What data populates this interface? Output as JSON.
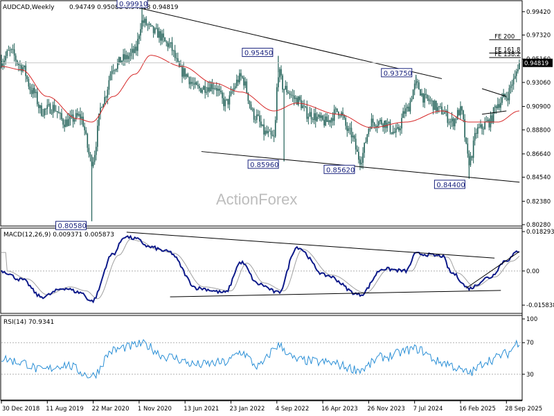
{
  "header": {
    "symbol": "AUDCAD,Weekly",
    "ohlc": "0.94749 0.95088 0.94518 0.94819"
  },
  "watermark": "ActionForex",
  "colors": {
    "candle": "#1f5f56",
    "ema": "#d62828",
    "macd": "#0d1a8a",
    "signal": "#a0a0a0",
    "rsi": "#2a8fd6",
    "annot_box": "#1a237e",
    "last_price_bg": "#000000"
  },
  "chart_data": [
    {
      "type": "candlestick",
      "name": "price",
      "ylim": [
        0.8028,
        1.0022
      ],
      "yticks": [
        "0.99420",
        "0.97320",
        "0.95160",
        "0.93060",
        "0.90900",
        "0.88800",
        "0.86640",
        "0.84540",
        "0.82380",
        "0.80280"
      ],
      "ytick_values": [
        0.9942,
        0.9732,
        0.9516,
        0.9306,
        0.909,
        0.888,
        0.8664,
        0.8454,
        0.8238,
        0.8028
      ],
      "last_price": "0.94819",
      "xticks": [
        "30 Dec 2018",
        "11 Aug 2019",
        "22 Mar 2020",
        "1 Nov 2020",
        "13 Jun 2021",
        "23 Jan 2022",
        "4 Sep 2022",
        "16 Apr 2023",
        "26 Nov 2023",
        "7 Jul 2024",
        "16 Feb 2025",
        "28 Sep 2025"
      ],
      "annotations": [
        {
          "text": "0.99910",
          "value": 0.9991,
          "date": "2020-11-15"
        },
        {
          "text": "0.95450",
          "value": 0.9545,
          "date": "2022-09-11"
        },
        {
          "text": "0.93750",
          "value": 0.9375,
          "date": "2024-07-14"
        },
        {
          "text": "0.85960",
          "value": 0.8596,
          "date": "2022-10-09"
        },
        {
          "text": "0.85620",
          "value": 0.8562,
          "date": "2023-10-15"
        },
        {
          "text": "0.84400",
          "value": 0.844,
          "date": "2025-03-30"
        },
        {
          "text": "0.80580",
          "value": 0.8058,
          "date": "2020-03-15"
        }
      ],
      "fib_levels": [
        {
          "text": "FE 200",
          "value": 0.969
        },
        {
          "text": "FE 161.8",
          "value": 0.957
        },
        {
          "text": "FE 138.2",
          "value": 0.953
        }
      ],
      "anchors": [
        {
          "date": "2018-12-30",
          "value": 0.95
        },
        {
          "date": "2019-02-10",
          "value": 0.958
        },
        {
          "date": "2019-04-07",
          "value": 0.945
        },
        {
          "date": "2019-06-02",
          "value": 0.922
        },
        {
          "date": "2019-07-14",
          "value": 0.905
        },
        {
          "date": "2019-09-08",
          "value": 0.908
        },
        {
          "date": "2019-11-03",
          "value": 0.895
        },
        {
          "date": "2020-01-19",
          "value": 0.9
        },
        {
          "date": "2020-03-15",
          "value": 0.86
        },
        {
          "date": "2020-05-10",
          "value": 0.915
        },
        {
          "date": "2020-06-28",
          "value": 0.945
        },
        {
          "date": "2020-08-23",
          "value": 0.952
        },
        {
          "date": "2020-10-11",
          "value": 0.958
        },
        {
          "date": "2020-11-15",
          "value": 0.985
        },
        {
          "date": "2021-01-24",
          "value": 0.975
        },
        {
          "date": "2021-03-21",
          "value": 0.965
        },
        {
          "date": "2021-05-30",
          "value": 0.94
        },
        {
          "date": "2021-08-15",
          "value": 0.925
        },
        {
          "date": "2021-10-31",
          "value": 0.928
        },
        {
          "date": "2021-12-26",
          "value": 0.912
        },
        {
          "date": "2022-03-13",
          "value": 0.935
        },
        {
          "date": "2022-05-22",
          "value": 0.9
        },
        {
          "date": "2022-07-10",
          "value": 0.885
        },
        {
          "date": "2022-08-21",
          "value": 0.88
        },
        {
          "date": "2022-09-11",
          "value": 0.94
        },
        {
          "date": "2022-10-09",
          "value": 0.925
        },
        {
          "date": "2022-12-11",
          "value": 0.915
        },
        {
          "date": "2023-02-05",
          "value": 0.902
        },
        {
          "date": "2023-04-30",
          "value": 0.895
        },
        {
          "date": "2023-07-02",
          "value": 0.905
        },
        {
          "date": "2023-08-27",
          "value": 0.885
        },
        {
          "date": "2023-10-15",
          "value": 0.862
        },
        {
          "date": "2023-12-10",
          "value": 0.895
        },
        {
          "date": "2024-02-04",
          "value": 0.895
        },
        {
          "date": "2024-04-07",
          "value": 0.885
        },
        {
          "date": "2024-05-26",
          "value": 0.905
        },
        {
          "date": "2024-07-14",
          "value": 0.928
        },
        {
          "date": "2024-09-01",
          "value": 0.915
        },
        {
          "date": "2024-11-17",
          "value": 0.905
        },
        {
          "date": "2025-01-05",
          "value": 0.895
        },
        {
          "date": "2025-02-16",
          "value": 0.905
        },
        {
          "date": "2025-03-30",
          "value": 0.86
        },
        {
          "date": "2025-05-11",
          "value": 0.888
        },
        {
          "date": "2025-07-06",
          "value": 0.895
        },
        {
          "date": "2025-08-17",
          "value": 0.912
        },
        {
          "date": "2025-09-28",
          "value": 0.918
        },
        {
          "date": "2025-11-02",
          "value": 0.932
        },
        {
          "date": "2025-11-30",
          "value": 0.94819
        }
      ],
      "ema_anchors": [
        {
          "date": "2018-12-30",
          "value": 0.945
        },
        {
          "date": "2019-04-07",
          "value": 0.942
        },
        {
          "date": "2019-08-11",
          "value": 0.918
        },
        {
          "date": "2020-01-05",
          "value": 0.898
        },
        {
          "date": "2020-03-15",
          "value": 0.895
        },
        {
          "date": "2020-06-28",
          "value": 0.918
        },
        {
          "date": "2020-10-11",
          "value": 0.938
        },
        {
          "date": "2020-12-27",
          "value": 0.955
        },
        {
          "date": "2021-05-30",
          "value": 0.945
        },
        {
          "date": "2021-10-31",
          "value": 0.93
        },
        {
          "date": "2022-03-13",
          "value": 0.922
        },
        {
          "date": "2022-08-21",
          "value": 0.905
        },
        {
          "date": "2022-12-11",
          "value": 0.912
        },
        {
          "date": "2023-07-02",
          "value": 0.902
        },
        {
          "date": "2023-12-10",
          "value": 0.89
        },
        {
          "date": "2024-05-26",
          "value": 0.895
        },
        {
          "date": "2024-11-17",
          "value": 0.905
        },
        {
          "date": "2025-03-30",
          "value": 0.895
        },
        {
          "date": "2025-08-17",
          "value": 0.895
        },
        {
          "date": "2025-11-30",
          "value": 0.905
        }
      ]
    },
    {
      "type": "line",
      "name": "MACD",
      "label": "MACD(12,26,9) 0.009371 0.005873",
      "ylim": [
        -0.01838,
        0.01829
      ],
      "yticks": [
        "0.018293",
        "0.00",
        "-0.015838"
      ],
      "ytick_values": [
        0.018293,
        0.0,
        -0.015838
      ],
      "macd_anchors": [
        {
          "date": "2018-12-30",
          "value": 0.0
        },
        {
          "date": "2019-04-07",
          "value": -0.004
        },
        {
          "date": "2019-07-14",
          "value": -0.012
        },
        {
          "date": "2019-11-03",
          "value": -0.008
        },
        {
          "date": "2020-01-19",
          "value": -0.01
        },
        {
          "date": "2020-03-15",
          "value": -0.014
        },
        {
          "date": "2020-06-28",
          "value": 0.008
        },
        {
          "date": "2020-08-23",
          "value": 0.016
        },
        {
          "date": "2020-10-11",
          "value": 0.015
        },
        {
          "date": "2020-12-27",
          "value": 0.011
        },
        {
          "date": "2021-03-21",
          "value": 0.009
        },
        {
          "date": "2021-08-15",
          "value": -0.008
        },
        {
          "date": "2021-12-26",
          "value": -0.01
        },
        {
          "date": "2022-03-13",
          "value": 0.004
        },
        {
          "date": "2022-06-05",
          "value": -0.006
        },
        {
          "date": "2022-09-11",
          "value": -0.01
        },
        {
          "date": "2022-12-11",
          "value": 0.011
        },
        {
          "date": "2023-04-30",
          "value": -0.002
        },
        {
          "date": "2023-10-15",
          "value": -0.011
        },
        {
          "date": "2024-02-04",
          "value": 0.001
        },
        {
          "date": "2024-05-26",
          "value": 0.0
        },
        {
          "date": "2024-07-14",
          "value": 0.008
        },
        {
          "date": "2024-11-17",
          "value": 0.007
        },
        {
          "date": "2025-01-05",
          "value": -0.001
        },
        {
          "date": "2025-03-30",
          "value": -0.008
        },
        {
          "date": "2025-07-06",
          "value": -0.003
        },
        {
          "date": "2025-09-28",
          "value": 0.005
        },
        {
          "date": "2025-11-30",
          "value": 0.009371
        }
      ],
      "trendlines": [
        {
          "from": {
            "date": "2020-09-01",
            "value": 0.018
          },
          "to": {
            "date": "2025-08-01",
            "value": 0.006
          }
        },
        {
          "from": {
            "date": "2021-04-01",
            "value": -0.012
          },
          "to": {
            "date": "2025-09-01",
            "value": -0.009
          }
        },
        {
          "from": {
            "date": "2025-03-15",
            "value": -0.008
          },
          "to": {
            "date": "2025-11-30",
            "value": 0.009
          }
        }
      ]
    },
    {
      "type": "line",
      "name": "RSI",
      "label": "RSI(14) 70.9341",
      "ylim": [
        0,
        100
      ],
      "yticks": [
        "100",
        "70",
        "30",
        "0"
      ],
      "ytick_values": [
        100,
        70,
        30,
        0
      ],
      "rsi_anchors": [
        {
          "date": "2018-12-30",
          "value": 50
        },
        {
          "date": "2019-04-07",
          "value": 45
        },
        {
          "date": "2019-07-14",
          "value": 35
        },
        {
          "date": "2019-11-03",
          "value": 42
        },
        {
          "date": "2020-03-15",
          "value": 28
        },
        {
          "date": "2020-06-28",
          "value": 60
        },
        {
          "date": "2020-08-23",
          "value": 64
        },
        {
          "date": "2020-11-15",
          "value": 68
        },
        {
          "date": "2021-03-21",
          "value": 52
        },
        {
          "date": "2021-08-15",
          "value": 42
        },
        {
          "date": "2021-12-26",
          "value": 45
        },
        {
          "date": "2022-03-13",
          "value": 58
        },
        {
          "date": "2022-06-05",
          "value": 40
        },
        {
          "date": "2022-09-11",
          "value": 66
        },
        {
          "date": "2022-12-11",
          "value": 48
        },
        {
          "date": "2023-04-30",
          "value": 45
        },
        {
          "date": "2023-10-15",
          "value": 36
        },
        {
          "date": "2024-02-04",
          "value": 52
        },
        {
          "date": "2024-07-14",
          "value": 62
        },
        {
          "date": "2024-11-17",
          "value": 45
        },
        {
          "date": "2025-03-30",
          "value": 32
        },
        {
          "date": "2025-07-06",
          "value": 48
        },
        {
          "date": "2025-09-28",
          "value": 56
        },
        {
          "date": "2025-11-30",
          "value": 70.9341
        }
      ]
    }
  ]
}
